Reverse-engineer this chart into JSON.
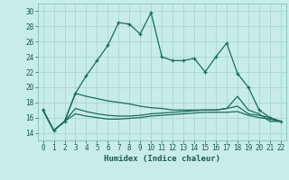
{
  "title": "",
  "xlabel": "Humidex (Indice chaleur)",
  "bg_color": "#c8ece8",
  "grid_color": "#a8d8d0",
  "line_color": "#1a6b5a",
  "xlim": [
    -0.5,
    22.5
  ],
  "ylim": [
    13,
    31
  ],
  "yticks": [
    14,
    16,
    18,
    20,
    22,
    24,
    26,
    28,
    30
  ],
  "xticks": [
    0,
    1,
    2,
    3,
    4,
    5,
    6,
    7,
    8,
    9,
    10,
    11,
    12,
    13,
    14,
    15,
    16,
    17,
    18,
    19,
    20,
    21,
    22
  ],
  "series1_x": [
    0,
    1,
    2,
    3,
    4,
    5,
    6,
    7,
    8,
    9,
    10,
    11,
    12,
    13,
    14,
    15,
    16,
    17,
    18,
    19,
    20,
    21,
    22
  ],
  "series1_y": [
    17.0,
    14.3,
    15.5,
    19.2,
    21.5,
    23.5,
    25.5,
    28.5,
    28.3,
    27.0,
    29.8,
    24.0,
    23.5,
    23.5,
    23.8,
    22.0,
    24.0,
    25.8,
    21.8,
    20.0,
    17.0,
    16.0,
    15.5
  ],
  "series2_x": [
    0,
    1,
    2,
    3,
    4,
    5,
    6,
    7,
    8,
    9,
    10,
    11,
    12,
    13,
    14,
    15,
    16,
    17,
    18,
    19,
    20,
    21,
    22
  ],
  "series2_y": [
    17.0,
    14.3,
    15.5,
    19.2,
    18.8,
    18.5,
    18.2,
    18.0,
    17.8,
    17.5,
    17.3,
    17.2,
    17.0,
    17.0,
    17.0,
    17.0,
    17.0,
    17.2,
    18.8,
    17.0,
    16.5,
    15.5,
    15.5
  ],
  "series3_x": [
    0,
    1,
    2,
    3,
    4,
    5,
    6,
    7,
    8,
    9,
    10,
    11,
    12,
    13,
    14,
    15,
    16,
    17,
    18,
    19,
    20,
    21,
    22
  ],
  "series3_y": [
    17.0,
    14.3,
    15.5,
    17.2,
    16.8,
    16.5,
    16.3,
    16.2,
    16.2,
    16.3,
    16.5,
    16.6,
    16.7,
    16.8,
    16.9,
    17.0,
    17.0,
    17.2,
    17.5,
    16.5,
    16.3,
    16.0,
    15.5
  ],
  "series4_x": [
    0,
    1,
    2,
    3,
    4,
    5,
    6,
    7,
    8,
    9,
    10,
    11,
    12,
    13,
    14,
    15,
    16,
    17,
    18,
    19,
    20,
    21,
    22
  ],
  "series4_y": [
    17.0,
    14.3,
    15.5,
    16.5,
    16.2,
    16.0,
    15.8,
    15.8,
    15.9,
    16.0,
    16.2,
    16.3,
    16.4,
    16.5,
    16.6,
    16.7,
    16.7,
    16.7,
    16.8,
    16.3,
    16.0,
    15.8,
    15.5
  ]
}
